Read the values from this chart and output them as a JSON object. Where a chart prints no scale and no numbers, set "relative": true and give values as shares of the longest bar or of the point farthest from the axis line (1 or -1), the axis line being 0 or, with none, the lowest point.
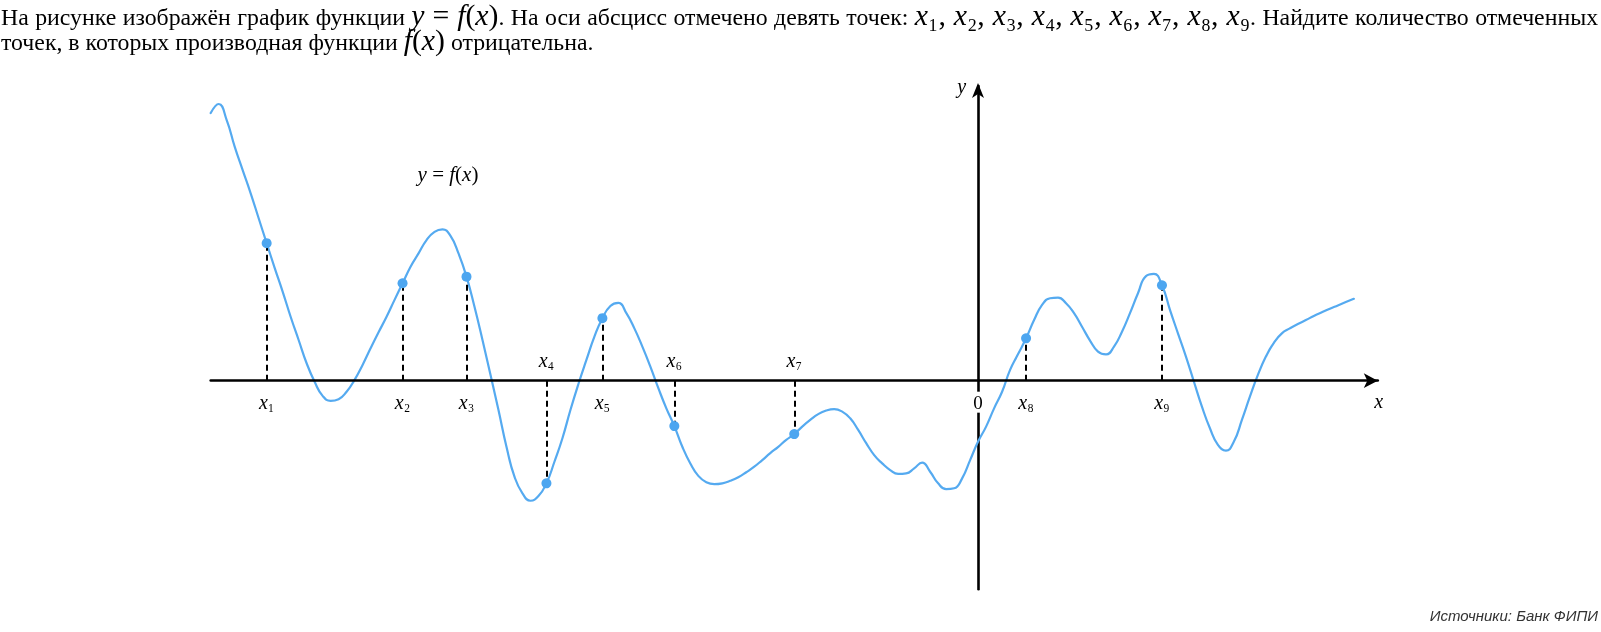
{
  "chart_data": {
    "type": "line",
    "title": "На рисунке изображён график функции y = f(x). На оси абсцисс отмечено девять точек: x₁, x₂, x₃, x₄, x₅, x₆, x₇, x₈, x₉. Найдите количество отмеченных точек, в которых производная функции f(x) отрицательна.",
    "xlabel": "x",
    "ylabel": "y",
    "annotations": [
      "y = f(x)",
      "Источники: Банк ФИПИ"
    ],
    "relative": true,
    "tick_labels": "x",
    "categories": [
      null,
      null,
      null,
      null,
      null,
      null,
      null,
      "x₁",
      null,
      null,
      null,
      null,
      null,
      null,
      null,
      null,
      null,
      null,
      null,
      null,
      null,
      null,
      null,
      null,
      "x₂",
      null,
      null,
      null,
      null,
      null,
      null,
      null,
      "x₃",
      null,
      null,
      null,
      null,
      null,
      null,
      null,
      null,
      null,
      "x₄",
      null,
      null,
      null,
      null,
      null,
      null,
      "x₅",
      null,
      null,
      null,
      null,
      null,
      null,
      null,
      null,
      "x₆",
      null,
      null,
      null,
      null,
      null,
      null,
      null,
      null,
      null,
      null,
      null,
      null,
      null,
      null,
      "x₇",
      null,
      null,
      null,
      null,
      null,
      null,
      null,
      null,
      null,
      null,
      null,
      null,
      null,
      null,
      null,
      null,
      null,
      null,
      null,
      null,
      null,
      null,
      "0",
      null,
      null,
      null,
      null,
      null,
      "x₈",
      null,
      null,
      null,
      null,
      null,
      null,
      null,
      null,
      null,
      null,
      null,
      null,
      null,
      null,
      null,
      null,
      "x₉",
      null,
      null,
      null,
      null,
      null,
      null,
      null,
      null,
      null,
      null,
      null,
      null,
      null,
      null,
      null,
      null,
      null,
      null,
      null,
      null,
      null,
      null,
      null,
      null,
      null,
      null,
      null
    ],
    "series": [
      {
        "type": "line",
        "color": "#55aaf0",
        "marker": "none",
        "values": [
          0.967,
          1,
          0.942,
          0.846,
          0.761,
          0.677,
          0.587,
          0.497,
          0.408,
          0.322,
          0.231,
          0.147,
          0.063,
          -0.004,
          -0.055,
          -0.073,
          -0.067,
          -0.04,
          0.003,
          0.057,
          0.117,
          0.175,
          0.231,
          0.292,
          0.352,
          0.412,
          0.46,
          0.508,
          0.538,
          0.547,
          0.523,
          0.46,
          0.376,
          0.267,
          0.147,
          0.021,
          -0.106,
          -0.239,
          -0.347,
          -0.407,
          -0.434,
          -0.417,
          -0.371,
          -0.293,
          -0.208,
          -0.106,
          -0.012,
          0.075,
          0.159,
          0.226,
          0.27,
          0.281,
          0.244,
          0.189,
          0.123,
          0.051,
          -0.027,
          -0.1,
          -0.164,
          -0.239,
          -0.299,
          -0.344,
          -0.367,
          -0.374,
          -0.371,
          -0.362,
          -0.349,
          -0.331,
          -0.311,
          -0.287,
          -0.262,
          -0.239,
          -0.214,
          -0.193,
          -0.166,
          -0.142,
          -0.121,
          -0.108,
          -0.103,
          -0.112,
          -0.136,
          -0.178,
          -0.226,
          -0.269,
          -0.299,
          -0.323,
          -0.337,
          -0.335,
          -0.317,
          -0.296,
          -0.329,
          -0.371,
          -0.392,
          -0.389,
          -0.353,
          -0.287,
          -0.22,
          -0.166,
          -0.1,
          -0.04,
          0.039,
          0.096,
          0.153,
          0.219,
          0.274,
          0.298,
          0.3,
          0.28,
          0.244,
          0.195,
          0.145,
          0.105,
          0.095,
          0.123,
          0.177,
          0.244,
          0.316,
          0.378,
          0.386,
          0.345,
          0.256,
          0.171,
          0.087,
          -0.004,
          -0.094,
          -0.172,
          -0.232,
          -0.253,
          -0.22,
          -0.142,
          -0.058,
          0.021,
          0.087,
          0.137,
          0.171,
          0.189,
          0.205,
          0.219,
          0.234,
          0.247,
          0.26,
          0.272,
          0.284,
          0.296,
          null,
          null,
          null
        ]
      },
      {
        "type": "lollipop",
        "color": "#4da6f0",
        "marker": "circle",
        "line_style": "dashed",
        "values": [
          null,
          null,
          null,
          null,
          null,
          null,
          null,
          0.497,
          null,
          null,
          null,
          null,
          null,
          null,
          null,
          null,
          null,
          null,
          null,
          null,
          null,
          null,
          null,
          null,
          0.352,
          null,
          null,
          null,
          null,
          null,
          null,
          null,
          0.376,
          null,
          null,
          null,
          null,
          null,
          null,
          null,
          null,
          null,
          -0.371,
          null,
          null,
          null,
          null,
          null,
          null,
          0.226,
          null,
          null,
          null,
          null,
          null,
          null,
          null,
          null,
          -0.164,
          null,
          null,
          null,
          null,
          null,
          null,
          null,
          null,
          null,
          null,
          null,
          null,
          null,
          null,
          -0.193,
          null,
          null,
          null,
          null,
          null,
          null,
          null,
          null,
          null,
          null,
          null,
          null,
          null,
          null,
          null,
          null,
          null,
          null,
          null,
          null,
          null,
          null,
          null,
          null,
          null,
          null,
          null,
          null,
          0.153,
          null,
          null,
          null,
          null,
          null,
          null,
          null,
          null,
          null,
          null,
          null,
          null,
          null,
          null,
          null,
          null,
          0.345,
          null,
          null,
          null,
          null,
          null,
          null,
          null,
          null,
          null,
          null,
          null,
          null,
          null,
          null,
          null,
          null,
          null,
          null,
          null,
          null,
          null,
          null,
          null,
          null,
          null,
          null,
          null
        ]
      }
    ]
  }
}
